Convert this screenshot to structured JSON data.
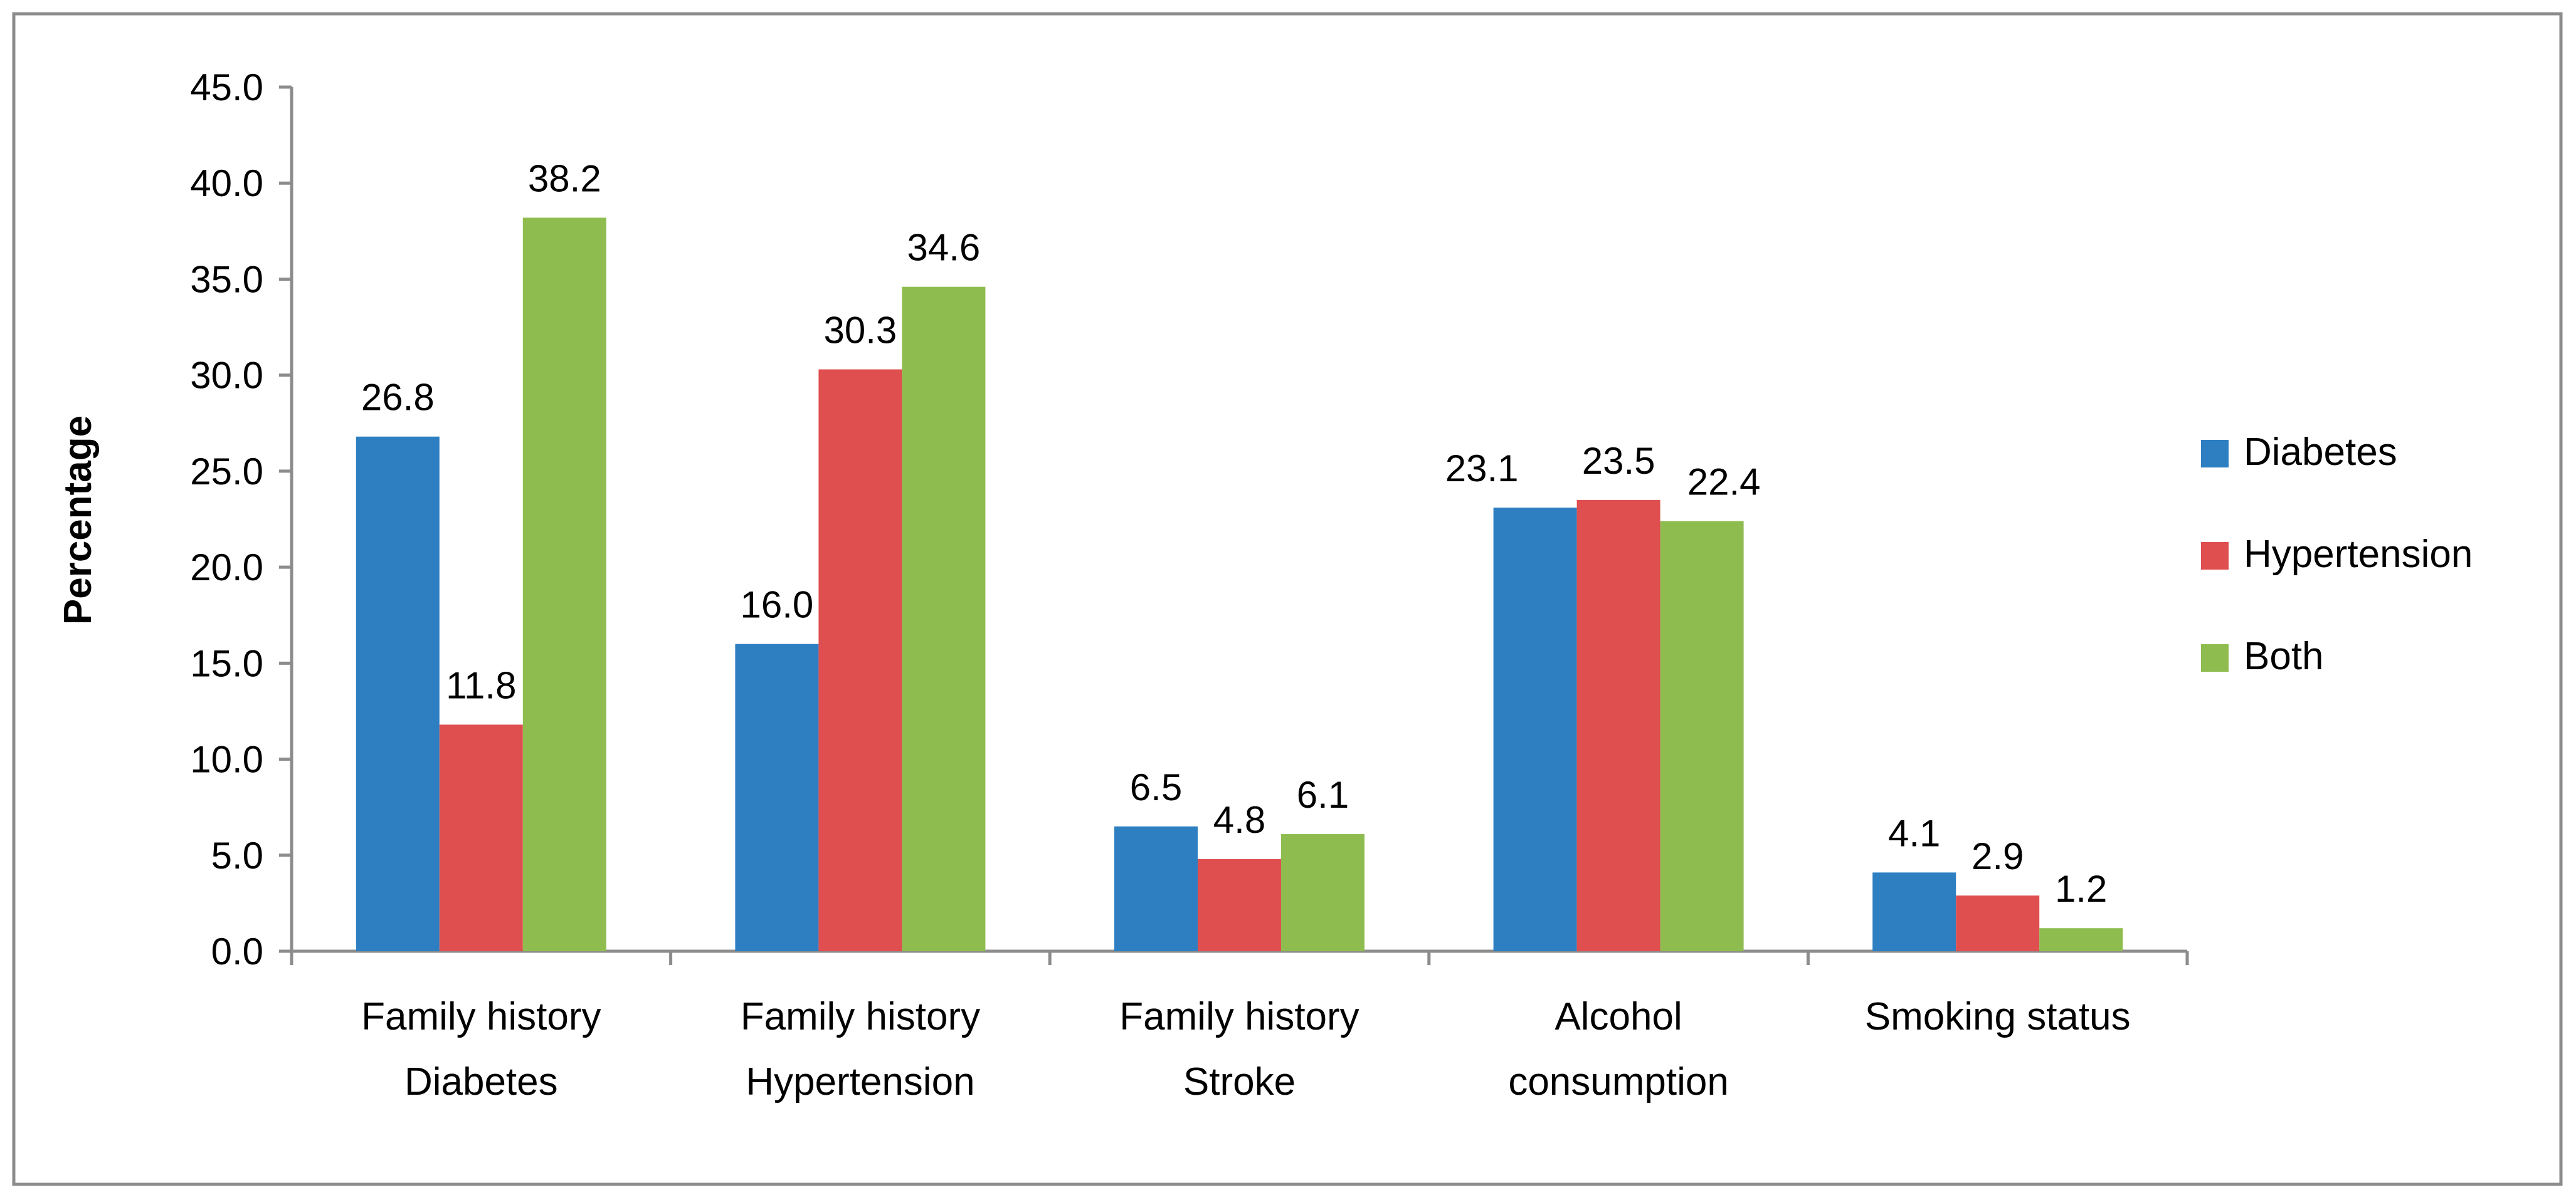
{
  "chart_data": {
    "type": "bar",
    "title": "",
    "xlabel": "",
    "ylabel": "Percentage",
    "ylim": [
      0,
      45
    ],
    "ytick_step": 5,
    "ytick_labels": [
      "0.0",
      "5.0",
      "10.0",
      "15.0",
      "20.0",
      "25.0",
      "30.0",
      "35.0",
      "40.0",
      "45.0"
    ],
    "categories": [
      [
        "Family history",
        "Diabetes"
      ],
      [
        "Family history",
        "Hypertension"
      ],
      [
        "Family history",
        "Stroke"
      ],
      [
        "Alcohol",
        "consumption"
      ],
      [
        "Smoking status"
      ]
    ],
    "series": [
      {
        "name": "Diabetes",
        "color": "#2e7fc2",
        "values": [
          26.8,
          16.0,
          6.5,
          23.1,
          4.1
        ],
        "labels": [
          "26.8",
          "16.0",
          "6.5",
          "23.1",
          "4.1"
        ]
      },
      {
        "name": "Hypertension",
        "color": "#e04f4f",
        "values": [
          11.8,
          30.3,
          4.8,
          23.5,
          2.9
        ],
        "labels": [
          "11.8",
          "30.3",
          "4.8",
          "23.5",
          "2.9"
        ]
      },
      {
        "name": "Both",
        "color": "#8fbc4f",
        "values": [
          38.2,
          34.6,
          6.1,
          22.4,
          1.2
        ],
        "labels": [
          "38.2",
          "34.6",
          "6.1",
          "22.4",
          "1.2"
        ]
      }
    ],
    "legend": {
      "position": "right"
    },
    "grid": false
  }
}
